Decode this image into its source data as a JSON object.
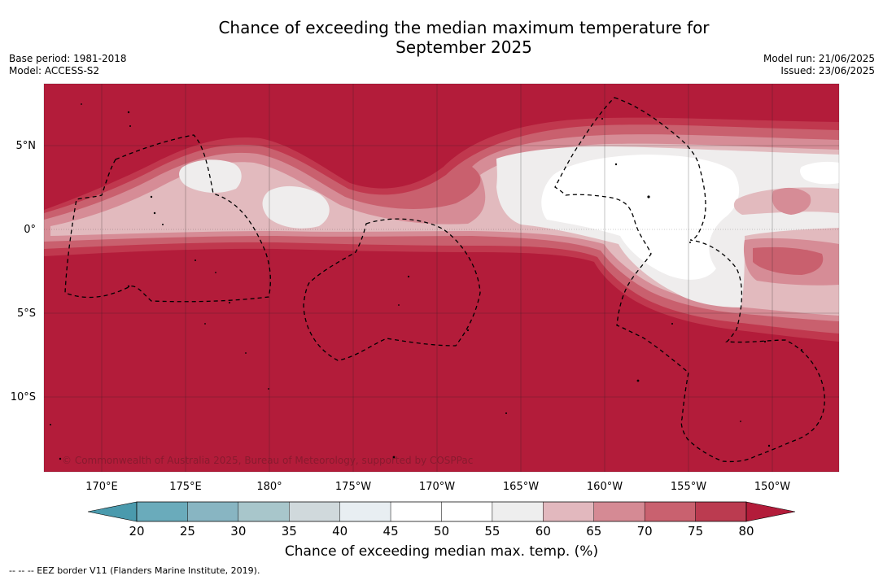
{
  "header": {
    "title_line1": "Chance of exceeding the median maximum temperature for",
    "title_line2": "September 2025",
    "base_period": "Base period: 1981-2018",
    "model": "Model: ACCESS-S2",
    "model_run": "Model run: 21/06/2025",
    "issued": "Issued: 23/06/2025"
  },
  "map": {
    "latitude_labels": [
      "5°N",
      "0°",
      "5°S",
      "10°S"
    ],
    "longitude_labels": [
      "170°E",
      "175°E",
      "180°",
      "175°W",
      "170°W",
      "165°W",
      "160°W",
      "155°W",
      "150°W"
    ],
    "copyright": "© Commonwealth of Australia 2025, Bureau of Meteorology, supported by COSPPac",
    "colors": {
      "gt80": "#b31c3a",
      "75_80": "#c0384e",
      "70_75": "#c9606e",
      "65_70": "#d68c96",
      "60_65": "#e2babe",
      "55_60": "#efeded",
      "50_55": "#ffffff"
    }
  },
  "colorbar": {
    "ticks": [
      "20",
      "25",
      "30",
      "35",
      "40",
      "45",
      "50",
      "55",
      "60",
      "65",
      "70",
      "75",
      "80"
    ],
    "colors": [
      "#6aabbb",
      "#88b5c2",
      "#a8c6cb",
      "#d0d9dc",
      "#e8eef2",
      "#ffffff",
      "#ffffff",
      "#eeeeee",
      "#e2b8be",
      "#d58a94",
      "#c9616f",
      "#bb3b50"
    ],
    "low_extend_color": "#4a9aad",
    "high_extend_color": "#b31c3a",
    "title": "Chance of exceeding median max. temp. (%)"
  },
  "footnote": "--  --  -- EEZ border V11 (Flanders Marine Institute, 2019)."
}
